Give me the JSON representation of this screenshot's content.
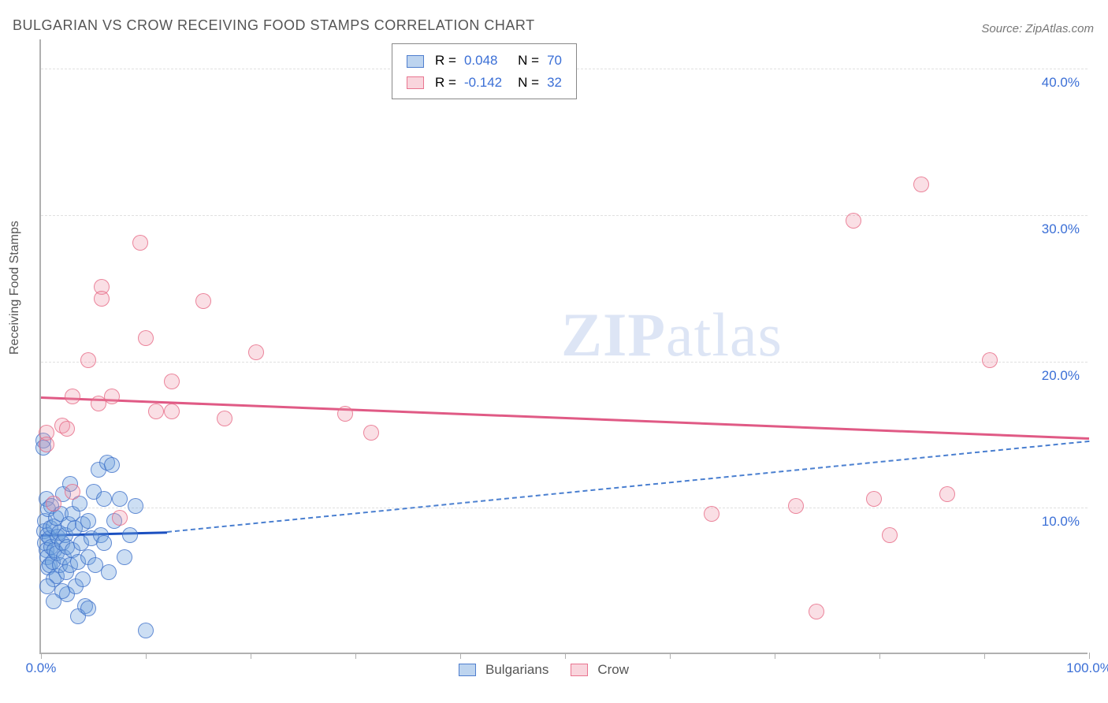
{
  "title": "BULGARIAN VS CROW RECEIVING FOOD STAMPS CORRELATION CHART",
  "source_prefix": "Source: ",
  "source_name": "ZipAtlas.com",
  "ylabel": "Receiving Food Stamps",
  "chart": {
    "type": "scatter",
    "xlim": [
      0,
      100
    ],
    "ylim": [
      0,
      42
    ],
    "ytick_step": 10,
    "ytick_labels": [
      "10.0%",
      "20.0%",
      "30.0%",
      "40.0%"
    ],
    "xtick_positions": [
      0,
      10,
      20,
      30,
      40,
      50,
      60,
      70,
      80,
      90,
      100
    ],
    "xtick_labels_left": "0.0%",
    "xtick_labels_right": "100.0%",
    "background_color": "#ffffff",
    "grid_color": "#e0e0e0",
    "axis_color": "#b0b0b0",
    "series": {
      "bulgarians": {
        "label": "Bulgarians",
        "color_fill": "rgba(108,160,220,0.35)",
        "color_stroke": "rgba(60,110,200,0.75)",
        "marker_radius_px": 10,
        "trend_color": "#1a4fc0",
        "trend_dash_color": "#4a7fd0",
        "trend_start": [
          0,
          8.2
        ],
        "trend_solid_end": [
          12,
          8.4
        ],
        "trend_dash_end": [
          100,
          14.6
        ],
        "points": [
          [
            0.2,
            14.5
          ],
          [
            0.2,
            14.0
          ],
          [
            0.3,
            8.3
          ],
          [
            0.4,
            7.5
          ],
          [
            0.4,
            9.0
          ],
          [
            0.5,
            7.0
          ],
          [
            0.5,
            10.5
          ],
          [
            0.6,
            6.5
          ],
          [
            0.6,
            8.0
          ],
          [
            0.7,
            5.8
          ],
          [
            0.7,
            9.8
          ],
          [
            0.8,
            7.8
          ],
          [
            0.8,
            6.0
          ],
          [
            0.9,
            8.5
          ],
          [
            1.0,
            7.2
          ],
          [
            1.0,
            10.0
          ],
          [
            1.1,
            6.2
          ],
          [
            1.2,
            5.0
          ],
          [
            1.2,
            8.6
          ],
          [
            1.3,
            7.0
          ],
          [
            1.4,
            9.2
          ],
          [
            1.5,
            6.8
          ],
          [
            1.5,
            5.2
          ],
          [
            1.6,
            7.9
          ],
          [
            1.7,
            8.2
          ],
          [
            1.8,
            6.0
          ],
          [
            1.9,
            9.5
          ],
          [
            2.0,
            7.5
          ],
          [
            2.1,
            10.8
          ],
          [
            2.2,
            6.5
          ],
          [
            2.3,
            8.0
          ],
          [
            2.4,
            5.5
          ],
          [
            2.5,
            7.2
          ],
          [
            2.5,
            4.0
          ],
          [
            2.6,
            8.8
          ],
          [
            2.8,
            6.0
          ],
          [
            2.8,
            11.5
          ],
          [
            3.0,
            9.5
          ],
          [
            3.0,
            7.0
          ],
          [
            3.2,
            8.5
          ],
          [
            3.3,
            4.5
          ],
          [
            3.5,
            6.2
          ],
          [
            3.7,
            10.2
          ],
          [
            3.8,
            7.5
          ],
          [
            4.0,
            8.8
          ],
          [
            4.0,
            5.0
          ],
          [
            4.2,
            3.2
          ],
          [
            4.5,
            6.5
          ],
          [
            4.5,
            9.0
          ],
          [
            4.8,
            7.8
          ],
          [
            5.0,
            11.0
          ],
          [
            5.2,
            6.0
          ],
          [
            5.5,
            12.5
          ],
          [
            5.7,
            8.0
          ],
          [
            6.0,
            10.5
          ],
          [
            6.0,
            7.5
          ],
          [
            6.3,
            13.0
          ],
          [
            6.5,
            5.5
          ],
          [
            6.8,
            12.8
          ],
          [
            7.0,
            9.0
          ],
          [
            7.5,
            10.5
          ],
          [
            8.0,
            6.5
          ],
          [
            8.5,
            8.0
          ],
          [
            9.0,
            10.0
          ],
          [
            10.0,
            1.5
          ],
          [
            3.5,
            2.5
          ],
          [
            2.0,
            4.2
          ],
          [
            1.2,
            3.5
          ],
          [
            0.6,
            4.5
          ],
          [
            4.5,
            3.0
          ]
        ]
      },
      "crow": {
        "label": "Crow",
        "color_fill": "rgba(240,150,170,0.30)",
        "color_stroke": "rgba(230,100,130,0.75)",
        "marker_radius_px": 10,
        "trend_color": "#e05a85",
        "trend_start": [
          0,
          17.6
        ],
        "trend_end": [
          100,
          14.8
        ],
        "points": [
          [
            0.5,
            15.0
          ],
          [
            0.5,
            14.2
          ],
          [
            1.2,
            10.2
          ],
          [
            2.0,
            15.5
          ],
          [
            2.5,
            15.3
          ],
          [
            3.0,
            11.0
          ],
          [
            3.0,
            17.5
          ],
          [
            4.5,
            20.0
          ],
          [
            5.5,
            17.0
          ],
          [
            5.8,
            25.0
          ],
          [
            5.8,
            24.2
          ],
          [
            6.8,
            17.5
          ],
          [
            7.5,
            9.2
          ],
          [
            9.5,
            28.0
          ],
          [
            10.0,
            21.5
          ],
          [
            11.0,
            16.5
          ],
          [
            12.5,
            16.5
          ],
          [
            12.5,
            18.5
          ],
          [
            15.5,
            24.0
          ],
          [
            17.5,
            16.0
          ],
          [
            20.5,
            20.5
          ],
          [
            29.0,
            16.3
          ],
          [
            31.5,
            15.0
          ],
          [
            64.0,
            9.5
          ],
          [
            72.0,
            10.0
          ],
          [
            74.0,
            2.8
          ],
          [
            77.5,
            29.5
          ],
          [
            79.5,
            10.5
          ],
          [
            81.0,
            8.0
          ],
          [
            84.0,
            32.0
          ],
          [
            86.5,
            10.8
          ],
          [
            90.5,
            20.0
          ]
        ]
      }
    },
    "legend_top": {
      "rows": [
        {
          "swatch": "blue",
          "R_label": "R = ",
          "R": "0.048",
          "N_label": "N = ",
          "N": "70"
        },
        {
          "swatch": "pink",
          "R_label": "R = ",
          "R": "-0.142",
          "N_label": "N = ",
          "N": "32"
        }
      ]
    },
    "watermark": "ZIPatlas",
    "watermark_zip": "ZIP",
    "watermark_atlas": "atlas"
  }
}
